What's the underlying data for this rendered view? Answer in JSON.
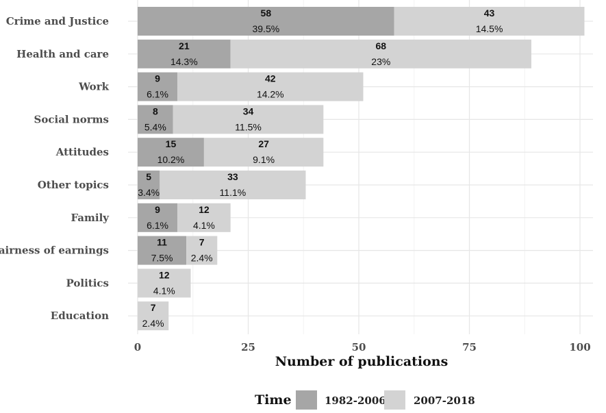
{
  "chart_data": {
    "type": "bar",
    "orientation": "horizontal",
    "stacked": true,
    "xlabel": "Number of publications",
    "ylabel": "",
    "xlim": [
      0,
      102
    ],
    "x_ticks": [
      0,
      25,
      50,
      75,
      100
    ],
    "grid": true,
    "legend": {
      "title": "Time",
      "position": "bottom"
    },
    "categories": [
      "Crime and Justice",
      "Health and care",
      "Work",
      "Social norms",
      "Attitudes",
      "Other topics",
      "Family",
      "Fairness of earnings",
      "Politics",
      "Education"
    ],
    "series": [
      {
        "name": "1982-2006",
        "color": "#a6a6a6",
        "values": [
          58,
          21,
          9,
          8,
          15,
          5,
          9,
          11,
          0,
          0
        ],
        "labels": [
          "39.5%",
          "14.3%",
          "6.1%",
          "5.4%",
          "10.2%",
          "3.4%",
          "6.1%",
          "7.5%",
          "",
          ""
        ]
      },
      {
        "name": "2007-2018",
        "color": "#d3d3d3",
        "values": [
          43,
          68,
          42,
          34,
          27,
          33,
          12,
          7,
          12,
          7
        ],
        "labels": [
          "14.5%",
          "23%",
          "14.2%",
          "11.5%",
          "9.1%",
          "11.1%",
          "4.1%",
          "2.4%",
          "4.1%",
          "2.4%"
        ]
      }
    ]
  }
}
